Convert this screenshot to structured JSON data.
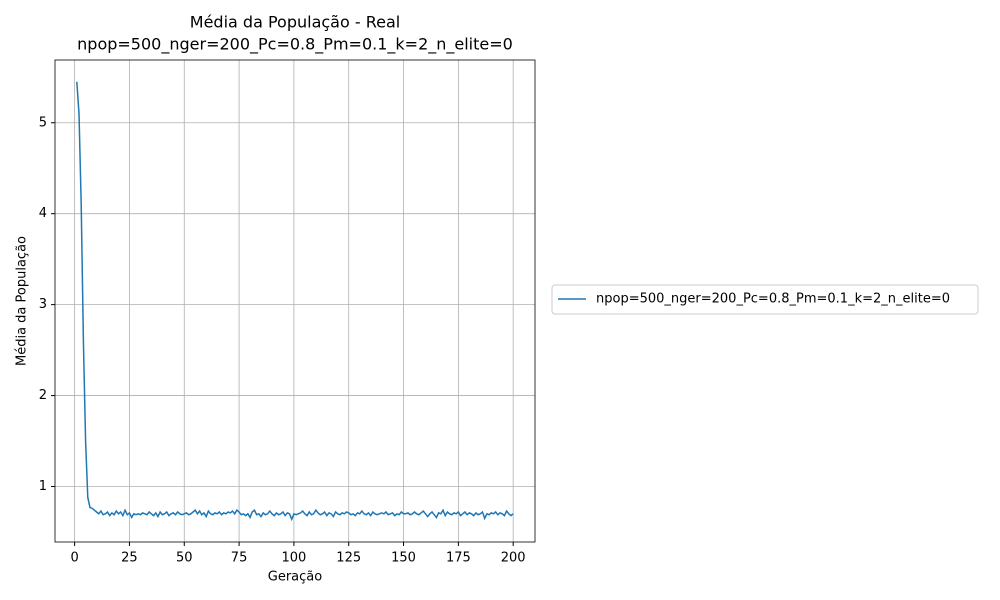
{
  "chart_data": {
    "type": "line",
    "title": "Média da População - Real",
    "subtitle": "npop=500_nger=200_Pc=0.8_Pm=0.1_k=2_n_elite=0",
    "xlabel": "Geração",
    "ylabel": "Média da População",
    "x": [
      1,
      2,
      3,
      4,
      5,
      6,
      7,
      8,
      9,
      10,
      11,
      12,
      13,
      14,
      15,
      16,
      17,
      18,
      19,
      20,
      21,
      22,
      23,
      24,
      25,
      26,
      27,
      28,
      29,
      30,
      31,
      32,
      33,
      34,
      35,
      36,
      37,
      38,
      39,
      40,
      41,
      42,
      43,
      44,
      45,
      46,
      47,
      48,
      49,
      50,
      51,
      52,
      53,
      54,
      55,
      56,
      57,
      58,
      59,
      60,
      61,
      62,
      63,
      64,
      65,
      66,
      67,
      68,
      69,
      70,
      71,
      72,
      73,
      74,
      75,
      76,
      77,
      78,
      79,
      80,
      81,
      82,
      83,
      84,
      85,
      86,
      87,
      88,
      89,
      90,
      91,
      92,
      93,
      94,
      95,
      96,
      97,
      98,
      99,
      100,
      101,
      102,
      103,
      104,
      105,
      106,
      107,
      108,
      109,
      110,
      111,
      112,
      113,
      114,
      115,
      116,
      117,
      118,
      119,
      120,
      121,
      122,
      123,
      124,
      125,
      126,
      127,
      128,
      129,
      130,
      131,
      132,
      133,
      134,
      135,
      136,
      137,
      138,
      139,
      140,
      141,
      142,
      143,
      144,
      145,
      146,
      147,
      148,
      149,
      150,
      151,
      152,
      153,
      154,
      155,
      156,
      157,
      158,
      159,
      160,
      161,
      162,
      163,
      164,
      165,
      166,
      167,
      168,
      169,
      170,
      171,
      172,
      173,
      174,
      175,
      176,
      177,
      178,
      179,
      180,
      181,
      182,
      183,
      184,
      185,
      186,
      187,
      188,
      189,
      190,
      191,
      192,
      193,
      194,
      195,
      196,
      197,
      198,
      199,
      200
    ],
    "series": [
      {
        "name": "npop=500_nger=200_Pc=0.8_Pm=0.1_k=2_n_elite=0",
        "color": "#1f77b4",
        "values": [
          5.45,
          5.1,
          4.1,
          2.6,
          1.5,
          0.88,
          0.77,
          0.76,
          0.74,
          0.72,
          0.7,
          0.73,
          0.69,
          0.7,
          0.72,
          0.68,
          0.71,
          0.69,
          0.73,
          0.7,
          0.72,
          0.68,
          0.74,
          0.69,
          0.71,
          0.66,
          0.7,
          0.69,
          0.7,
          0.69,
          0.71,
          0.7,
          0.69,
          0.72,
          0.7,
          0.68,
          0.71,
          0.67,
          0.72,
          0.69,
          0.7,
          0.72,
          0.68,
          0.7,
          0.71,
          0.69,
          0.72,
          0.7,
          0.69,
          0.7,
          0.71,
          0.69,
          0.7,
          0.72,
          0.74,
          0.7,
          0.73,
          0.69,
          0.71,
          0.67,
          0.73,
          0.7,
          0.69,
          0.71,
          0.7,
          0.72,
          0.69,
          0.71,
          0.7,
          0.72,
          0.71,
          0.73,
          0.7,
          0.74,
          0.72,
          0.69,
          0.7,
          0.68,
          0.7,
          0.66,
          0.72,
          0.74,
          0.69,
          0.7,
          0.67,
          0.71,
          0.69,
          0.7,
          0.73,
          0.7,
          0.68,
          0.71,
          0.69,
          0.7,
          0.72,
          0.68,
          0.71,
          0.7,
          0.64,
          0.7,
          0.69,
          0.7,
          0.71,
          0.73,
          0.7,
          0.68,
          0.72,
          0.69,
          0.7,
          0.74,
          0.71,
          0.69,
          0.7,
          0.72,
          0.68,
          0.71,
          0.7,
          0.67,
          0.72,
          0.7,
          0.69,
          0.71,
          0.7,
          0.72,
          0.71,
          0.69,
          0.7,
          0.68,
          0.71,
          0.7,
          0.73,
          0.7,
          0.69,
          0.71,
          0.68,
          0.72,
          0.7,
          0.69,
          0.7,
          0.71,
          0.7,
          0.72,
          0.69,
          0.7,
          0.71,
          0.68,
          0.7,
          0.69,
          0.72,
          0.7,
          0.7,
          0.71,
          0.69,
          0.7,
          0.72,
          0.7,
          0.69,
          0.71,
          0.73,
          0.7,
          0.67,
          0.7,
          0.72,
          0.69,
          0.66,
          0.71,
          0.7,
          0.74,
          0.68,
          0.72,
          0.7,
          0.69,
          0.71,
          0.7,
          0.72,
          0.68,
          0.7,
          0.72,
          0.69,
          0.71,
          0.7,
          0.68,
          0.71,
          0.69,
          0.7,
          0.72,
          0.65,
          0.7,
          0.69,
          0.71,
          0.7,
          0.72,
          0.69,
          0.71,
          0.7,
          0.68,
          0.73,
          0.7,
          0.68,
          0.7
        ]
      }
    ],
    "xlim": [
      -8.95,
      209.95
    ],
    "ylim": [
      0.39,
      5.69
    ],
    "xticks": [
      0,
      25,
      50,
      75,
      100,
      125,
      150,
      175,
      200
    ],
    "yticks": [
      1,
      2,
      3,
      4,
      5
    ],
    "grid": true,
    "legend": "outside right"
  }
}
